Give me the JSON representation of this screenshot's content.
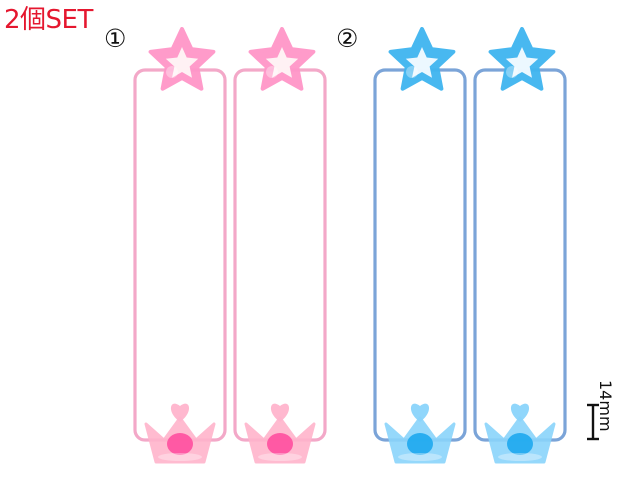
{
  "set_label": "2個SET",
  "variants": [
    {
      "number": "①",
      "elastic_color": "#f3a8c8",
      "star_color": "#ff96c8",
      "star_center": "#fff6f6",
      "crown_color": "#ffb4cc",
      "crown_gem": "#ff4f9e"
    },
    {
      "number": "②",
      "elastic_color": "#7ba4d8",
      "star_color": "#3fb5f0",
      "star_center": "#f6fbff",
      "crown_color": "#8ad4fb",
      "crown_gem": "#1da8ee"
    }
  ],
  "size_label": "14mm",
  "colors": {
    "accent": "#e5172f",
    "text": "#111111",
    "background": "#ffffff"
  }
}
